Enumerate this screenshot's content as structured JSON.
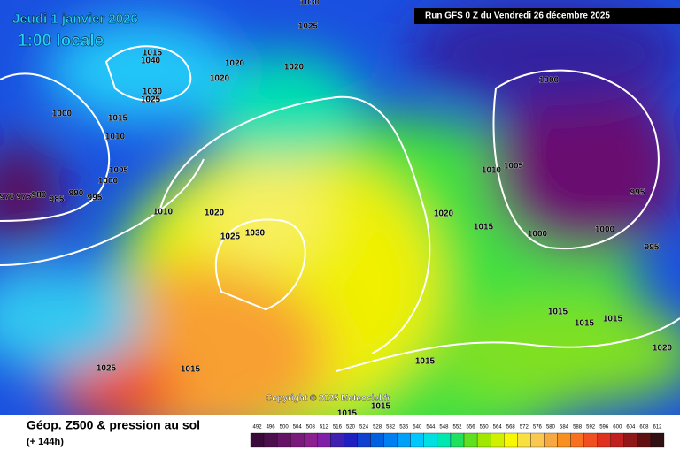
{
  "header": {
    "date": "Jeudi 1 janvier 2026",
    "time": "1:00 locale",
    "run": "Run GFS 0 Z du Vendredi 26 décembre 2025"
  },
  "copyright": "Copyright © 2025 Meteociel.fr",
  "footer": {
    "title": "Géop. Z500 & pression au sol",
    "lead": "(+ 144h)"
  },
  "isobar_labels": [
    1030,
    1025,
    1015,
    1040,
    1020,
    1020,
    1020,
    1030,
    1025,
    1000,
    1015,
    1010,
    1005,
    1000,
    970,
    975,
    980,
    985,
    990,
    995,
    1010,
    1020,
    1025,
    1030,
    1000,
    1010,
    1005,
    995,
    1020,
    1015,
    1000,
    1000,
    995,
    1015,
    1015,
    1015,
    1020,
    1015,
    1025,
    1015,
    1015,
    1015
  ],
  "legend": {
    "labels": [
      492,
      496,
      500,
      504,
      508,
      512,
      516,
      520,
      524,
      528,
      532,
      536,
      540,
      544,
      548,
      552,
      556,
      560,
      564,
      568,
      572,
      576,
      580,
      584,
      588,
      592,
      596,
      600,
      604,
      608,
      612
    ],
    "colors": [
      "#3a0a3a",
      "#4d0f4d",
      "#661466",
      "#7a1a7a",
      "#8c2090",
      "#8020a8",
      "#4020b0",
      "#2020c0",
      "#1040d0",
      "#0060e0",
      "#0080f0",
      "#00a0f8",
      "#00c8ff",
      "#00e0e0",
      "#00e8b0",
      "#20e060",
      "#60e020",
      "#a0e800",
      "#d0f000",
      "#f8f800",
      "#f8e040",
      "#f8c850",
      "#f8a840",
      "#f89020",
      "#f87020",
      "#f05020",
      "#e03020",
      "#c02020",
      "#901818",
      "#601010",
      "#301010"
    ]
  }
}
